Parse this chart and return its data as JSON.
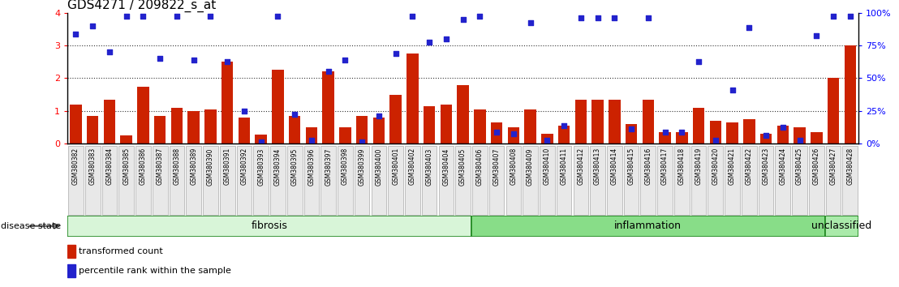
{
  "title": "GDS4271 / 209822_s_at",
  "samples": [
    "GSM380382",
    "GSM380383",
    "GSM380384",
    "GSM380385",
    "GSM380386",
    "GSM380387",
    "GSM380388",
    "GSM380389",
    "GSM380390",
    "GSM380391",
    "GSM380392",
    "GSM380393",
    "GSM380394",
    "GSM380395",
    "GSM380396",
    "GSM380397",
    "GSM380398",
    "GSM380399",
    "GSM380400",
    "GSM380401",
    "GSM380402",
    "GSM380403",
    "GSM380404",
    "GSM380405",
    "GSM380406",
    "GSM380407",
    "GSM380408",
    "GSM380409",
    "GSM380410",
    "GSM380411",
    "GSM380412",
    "GSM380413",
    "GSM380414",
    "GSM380415",
    "GSM380416",
    "GSM380417",
    "GSM380418",
    "GSM380419",
    "GSM380420",
    "GSM380421",
    "GSM380422",
    "GSM380423",
    "GSM380424",
    "GSM380425",
    "GSM380426",
    "GSM380427",
    "GSM380428"
  ],
  "bar_values": [
    1.2,
    0.85,
    1.35,
    0.25,
    1.75,
    0.85,
    1.1,
    1.0,
    1.05,
    2.5,
    0.8,
    0.27,
    2.25,
    0.85,
    0.5,
    2.2,
    0.5,
    0.85,
    0.8,
    1.5,
    2.75,
    1.15,
    1.2,
    1.8,
    1.05,
    0.65,
    0.5,
    1.05,
    0.3,
    0.55,
    1.35,
    1.35,
    1.35,
    0.6,
    1.35,
    0.35,
    0.35,
    1.1,
    0.7,
    0.65,
    0.75,
    0.3,
    0.55,
    0.5,
    0.35,
    2.0,
    3.0
  ],
  "blue_dot_values": [
    3.35,
    3.6,
    2.8,
    3.9,
    3.9,
    2.6,
    3.9,
    2.55,
    3.9,
    2.5,
    1.0,
    0.05,
    3.9,
    0.9,
    0.1,
    2.2,
    2.55,
    0.05,
    0.85,
    2.75,
    3.9,
    3.1,
    3.2,
    3.8,
    3.9,
    0.35,
    0.3,
    3.7,
    0.1,
    0.55,
    3.85,
    3.85,
    3.85,
    0.45,
    3.85,
    0.35,
    0.35,
    2.5,
    0.1,
    1.65,
    3.55,
    0.25,
    0.5,
    0.1,
    3.3,
    3.9,
    3.9
  ],
  "groups": [
    {
      "label": "fibrosis",
      "start": 0,
      "end": 23,
      "color": "#d8f5d8"
    },
    {
      "label": "inflammation",
      "start": 24,
      "end": 44,
      "color": "#88dd88"
    },
    {
      "label": "unclassified",
      "start": 45,
      "end": 46,
      "color": "#aaeaaa"
    }
  ],
  "bar_color": "#cc2200",
  "dot_color": "#2222cc",
  "ylim_left": [
    0,
    4
  ],
  "yticks_left": [
    0,
    1,
    2,
    3,
    4
  ],
  "yticks_right": [
    0,
    25,
    50,
    75,
    100
  ],
  "bg_color": "#ffffff",
  "grid_color": "#333333",
  "disease_state_label": "disease state",
  "legend_bar": "transformed count",
  "legend_dot": "percentile rank within the sample",
  "title_fontsize": 11,
  "tick_fontsize": 7,
  "group_fontsize": 9,
  "legend_fontsize": 8
}
